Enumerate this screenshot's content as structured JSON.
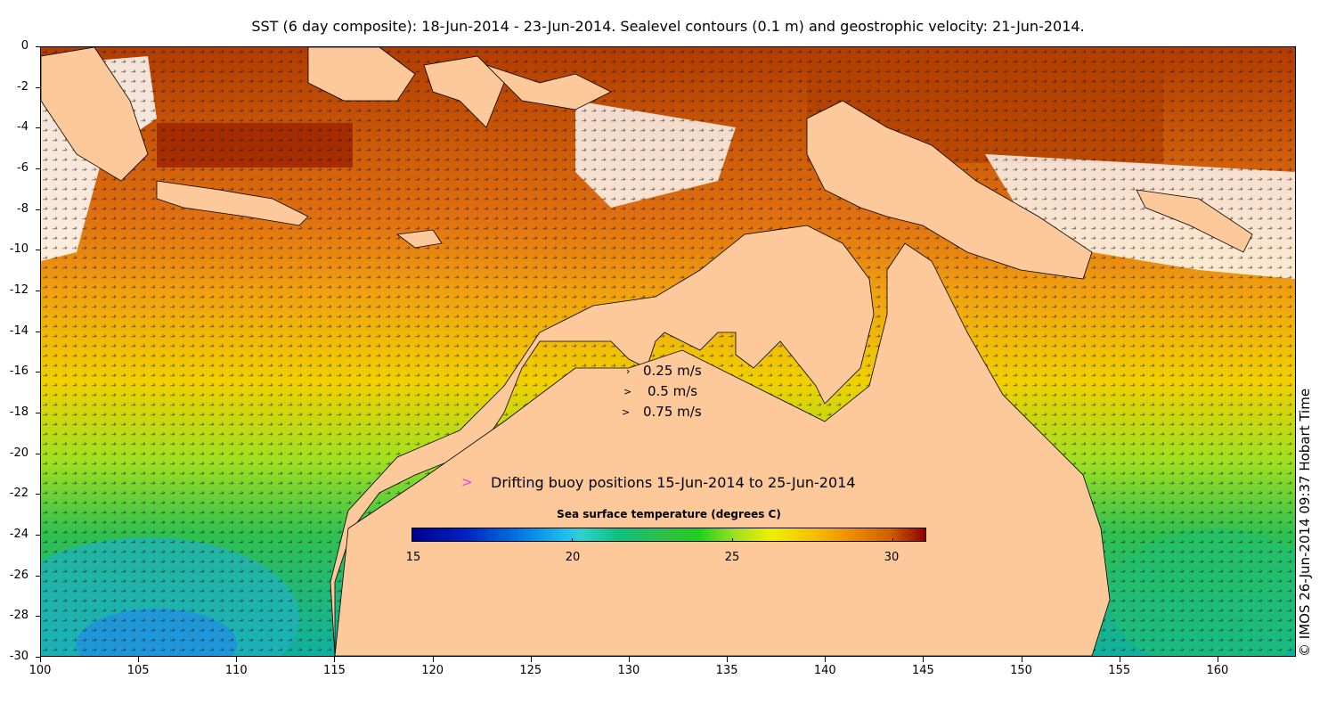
{
  "title": "SST (6 day composite): 18-Jun-2014 - 23-Jun-2014. Sealevel contours (0.1 m) and geostrophic velocity: 21-Jun-2014.",
  "axes": {
    "x_ticks": [
      "100",
      "105",
      "110",
      "115",
      "120",
      "125",
      "130",
      "135",
      "140",
      "145",
      "150",
      "155",
      "160"
    ],
    "y_ticks": [
      "0",
      "-2",
      "-4",
      "-6",
      "-8",
      "-10",
      "-12",
      "-14",
      "-16",
      "-18",
      "-20",
      "-22",
      "-24",
      "-26",
      "-28",
      "-30"
    ],
    "lon_range": [
      100,
      164
    ],
    "lat_range": [
      -30,
      0
    ]
  },
  "velocity_legend": [
    {
      "label": "0.25 m/s"
    },
    {
      "label": "0.5 m/s"
    },
    {
      "label": "0.75 m/s"
    }
  ],
  "buoy_legend": {
    "label": "Drifting buoy positions 15-Jun-2014 to 25-Jun-2014",
    "color": "#e040e0"
  },
  "colorbar": {
    "title": "Sea surface temperature (degrees C)",
    "ticks": [
      "15",
      "20",
      "25",
      "30"
    ],
    "range": [
      15,
      31
    ]
  },
  "credit": "© IMOS 26-Jun-2014 09:37 Hobart Time",
  "colors": {
    "land": "#fdc99b",
    "warm": "#b84000",
    "mid": "#e89010",
    "cool": "#30c060"
  }
}
